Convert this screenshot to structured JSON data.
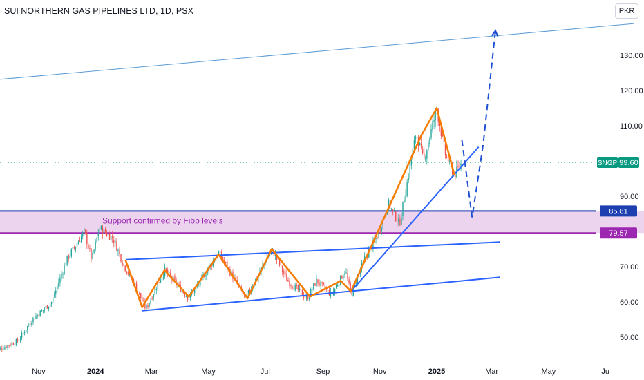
{
  "header": {
    "title": "SUI NORTHERN GAS PIPELINES LTD, 1D, PSX",
    "currency_button": "PKR"
  },
  "colors": {
    "up": "#26a69a",
    "down": "#ef5350",
    "trend_blue": "#2962ff",
    "wave_orange": "#f57c00",
    "zone_purple": "#9c27b0",
    "zone_fill": "#e9cdec",
    "level_blue": "#1e3fb0",
    "last_price_green": "#089981"
  },
  "chart_data": {
    "type": "candlestick",
    "symbol": "SNGP",
    "last_price": 99.6,
    "y_axis": {
      "ticks": [
        50,
        60,
        70,
        80,
        90,
        100,
        110,
        120,
        130
      ],
      "tick_labels": [
        "50.00",
        "60.00",
        "70.00",
        "",
        "90.00",
        "",
        "110.00",
        "120.00",
        "130.00"
      ]
    },
    "x_axis": {
      "labels": [
        {
          "text": "Nov",
          "date": "2023-11-01",
          "bold": false
        },
        {
          "text": "2024",
          "date": "2024-01-01",
          "bold": true
        },
        {
          "text": "Mar",
          "date": "2024-03-01",
          "bold": false
        },
        {
          "text": "May",
          "date": "2024-05-01",
          "bold": false
        },
        {
          "text": "Jul",
          "date": "2024-07-01",
          "bold": false
        },
        {
          "text": "Sep",
          "date": "2024-09-01",
          "bold": false
        },
        {
          "text": "Nov",
          "date": "2024-11-01",
          "bold": false
        },
        {
          "text": "2025",
          "date": "2025-01-01",
          "bold": true
        },
        {
          "text": "Mar",
          "date": "2025-03-01",
          "bold": false
        },
        {
          "text": "May",
          "date": "2025-05-01",
          "bold": false
        },
        {
          "text": "Ju",
          "date": "2025-07-01",
          "bold": false
        }
      ]
    },
    "price_path": [
      {
        "date": "2023-09-15",
        "price": 46
      },
      {
        "date": "2023-10-10",
        "price": 49
      },
      {
        "date": "2023-10-25",
        "price": 55
      },
      {
        "date": "2023-11-15",
        "price": 60
      },
      {
        "date": "2023-12-01",
        "price": 72
      },
      {
        "date": "2023-12-20",
        "price": 80
      },
      {
        "date": "2023-12-28",
        "price": 72
      },
      {
        "date": "2024-01-05",
        "price": 81
      },
      {
        "date": "2024-01-20",
        "price": 78
      },
      {
        "date": "2024-02-01",
        "price": 70
      },
      {
        "date": "2024-02-12",
        "price": 65
      },
      {
        "date": "2024-02-24",
        "price": 58
      },
      {
        "date": "2024-03-15",
        "price": 69
      },
      {
        "date": "2024-04-10",
        "price": 61
      },
      {
        "date": "2024-04-25",
        "price": 67
      },
      {
        "date": "2024-05-12",
        "price": 74
      },
      {
        "date": "2024-06-10",
        "price": 61
      },
      {
        "date": "2024-07-08",
        "price": 75
      },
      {
        "date": "2024-07-25",
        "price": 66
      },
      {
        "date": "2024-08-15",
        "price": 61
      },
      {
        "date": "2024-08-25",
        "price": 66
      },
      {
        "date": "2024-09-10",
        "price": 62
      },
      {
        "date": "2024-09-25",
        "price": 69
      },
      {
        "date": "2024-10-01",
        "price": 62
      },
      {
        "date": "2024-10-15",
        "price": 72
      },
      {
        "date": "2024-10-30",
        "price": 79
      },
      {
        "date": "2024-11-10",
        "price": 88
      },
      {
        "date": "2024-11-22",
        "price": 82
      },
      {
        "date": "2024-12-01",
        "price": 95
      },
      {
        "date": "2024-12-10",
        "price": 108
      },
      {
        "date": "2024-12-18",
        "price": 100
      },
      {
        "date": "2025-01-01",
        "price": 115
      },
      {
        "date": "2025-01-10",
        "price": 102
      },
      {
        "date": "2025-01-20",
        "price": 96
      },
      {
        "date": "2025-01-28",
        "price": 99.6
      }
    ],
    "horizontal_levels": [
      {
        "price": 85.81,
        "label": "85.81"
      },
      {
        "price": 79.57,
        "label": "79.57"
      }
    ],
    "zone": {
      "from": 79.57,
      "to": 85.81,
      "label": "Support confirmed by Fibb levels"
    },
    "trendlines": [
      {
        "name": "upper-channel-line",
        "color": "blue-thin",
        "points": [
          {
            "date": "2023-08-01",
            "price": 122
          },
          {
            "date": "2025-08-01",
            "price": 139
          }
        ]
      },
      {
        "name": "triangle-top",
        "color": "blue",
        "points": [
          {
            "date": "2024-02-03",
            "price": 72
          },
          {
            "date": "2025-03-10",
            "price": 77
          }
        ]
      },
      {
        "name": "triangle-bottom",
        "color": "blue",
        "points": [
          {
            "date": "2024-02-20",
            "price": 57.5
          },
          {
            "date": "2025-03-10",
            "price": 67
          }
        ]
      },
      {
        "name": "rising-support",
        "color": "blue",
        "points": [
          {
            "date": "2024-10-01",
            "price": 63
          },
          {
            "date": "2025-02-15",
            "price": 104
          }
        ]
      }
    ],
    "wave_path": [
      {
        "date": "2024-02-02",
        "price": 72
      },
      {
        "date": "2024-02-20",
        "price": 58.5
      },
      {
        "date": "2024-03-15",
        "price": 69
      },
      {
        "date": "2024-04-10",
        "price": 61.5
      },
      {
        "date": "2024-05-12",
        "price": 73.5
      },
      {
        "date": "2024-06-12",
        "price": 61
      },
      {
        "date": "2024-07-08",
        "price": 75
      },
      {
        "date": "2024-08-18",
        "price": 61.5
      },
      {
        "date": "2024-09-20",
        "price": 66
      },
      {
        "date": "2024-10-01",
        "price": 63
      },
      {
        "date": "2024-12-15",
        "price": 107
      },
      {
        "date": "2025-01-01",
        "price": 115
      },
      {
        "date": "2025-01-20",
        "price": 96
      }
    ],
    "projection": [
      {
        "date": "2025-01-28",
        "price": 106
      },
      {
        "date": "2025-02-08",
        "price": 84
      },
      {
        "date": "2025-02-20",
        "price": 105
      },
      {
        "date": "2025-03-05",
        "price": 137
      }
    ],
    "last_price_label": {
      "symbol": "SNGP",
      "value": "99.60"
    }
  }
}
